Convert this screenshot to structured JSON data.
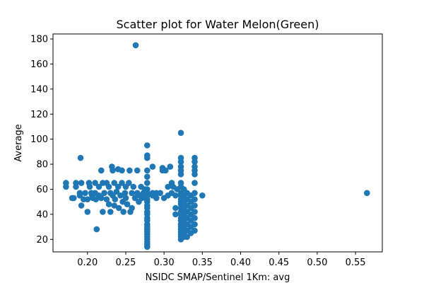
{
  "chart_data": {
    "type": "scatter",
    "title": "Scatter plot for Water Melon(Green)",
    "xlabel": "NSIDC SMAP/Sentinel 1Km: avg",
    "ylabel": "Average",
    "xlim": [
      0.155,
      0.585
    ],
    "ylim": [
      10,
      184
    ],
    "xticks": [
      0.2,
      0.25,
      0.3,
      0.35,
      0.4,
      0.45,
      0.5,
      0.55
    ],
    "xtick_labels": [
      "0.20",
      "0.25",
      "0.30",
      "0.35",
      "0.40",
      "0.45",
      "0.50",
      "0.55"
    ],
    "yticks": [
      20,
      40,
      60,
      80,
      100,
      120,
      140,
      160,
      180
    ],
    "ytick_labels": [
      "20",
      "40",
      "60",
      "80",
      "100",
      "120",
      "140",
      "160",
      "180"
    ],
    "grid": false,
    "marker_color": "#1f77b4",
    "points": [
      [
        0.172,
        65
      ],
      [
        0.172,
        62
      ],
      [
        0.18,
        53
      ],
      [
        0.182,
        53
      ],
      [
        0.185,
        62
      ],
      [
        0.185,
        65
      ],
      [
        0.19,
        57
      ],
      [
        0.19,
        55
      ],
      [
        0.191,
        85
      ],
      [
        0.192,
        65
      ],
      [
        0.192,
        47
      ],
      [
        0.195,
        52
      ],
      [
        0.197,
        57
      ],
      [
        0.2,
        52
      ],
      [
        0.2,
        42
      ],
      [
        0.202,
        65
      ],
      [
        0.203,
        62
      ],
      [
        0.205,
        57
      ],
      [
        0.206,
        55
      ],
      [
        0.207,
        53
      ],
      [
        0.21,
        65
      ],
      [
        0.21,
        57
      ],
      [
        0.211,
        52
      ],
      [
        0.212,
        28
      ],
      [
        0.215,
        55
      ],
      [
        0.215,
        62
      ],
      [
        0.218,
        75
      ],
      [
        0.218,
        53
      ],
      [
        0.22,
        65
      ],
      [
        0.22,
        42
      ],
      [
        0.222,
        57
      ],
      [
        0.225,
        65
      ],
      [
        0.225,
        52
      ],
      [
        0.228,
        62
      ],
      [
        0.228,
        48
      ],
      [
        0.23,
        57
      ],
      [
        0.23,
        42
      ],
      [
        0.232,
        78
      ],
      [
        0.233,
        75
      ],
      [
        0.233,
        55
      ],
      [
        0.235,
        65
      ],
      [
        0.235,
        47
      ],
      [
        0.236,
        52
      ],
      [
        0.238,
        58
      ],
      [
        0.24,
        76
      ],
      [
        0.24,
        62
      ],
      [
        0.241,
        45
      ],
      [
        0.243,
        55
      ],
      [
        0.245,
        65
      ],
      [
        0.245,
        75
      ],
      [
        0.246,
        50
      ],
      [
        0.247,
        42
      ],
      [
        0.249,
        57
      ],
      [
        0.25,
        62
      ],
      [
        0.25,
        53
      ],
      [
        0.252,
        48
      ],
      [
        0.254,
        65
      ],
      [
        0.255,
        75
      ],
      [
        0.256,
        42
      ],
      [
        0.258,
        57
      ],
      [
        0.258,
        45
      ],
      [
        0.26,
        62
      ],
      [
        0.262,
        53
      ],
      [
        0.263,
        175
      ],
      [
        0.265,
        75
      ],
      [
        0.265,
        57
      ],
      [
        0.267,
        50
      ],
      [
        0.268,
        55
      ],
      [
        0.27,
        62
      ],
      [
        0.271,
        53
      ],
      [
        0.273,
        57
      ],
      [
        0.275,
        55
      ],
      [
        0.275,
        60
      ],
      [
        0.276,
        53
      ],
      [
        0.278,
        95
      ],
      [
        0.278,
        87
      ],
      [
        0.278,
        85
      ],
      [
        0.278,
        75
      ],
      [
        0.278,
        70
      ],
      [
        0.278,
        65
      ],
      [
        0.278,
        60
      ],
      [
        0.278,
        57
      ],
      [
        0.278,
        55
      ],
      [
        0.278,
        52
      ],
      [
        0.278,
        50
      ],
      [
        0.278,
        47
      ],
      [
        0.278,
        45
      ],
      [
        0.278,
        42
      ],
      [
        0.278,
        40
      ],
      [
        0.278,
        37
      ],
      [
        0.278,
        35
      ],
      [
        0.278,
        32
      ],
      [
        0.278,
        30
      ],
      [
        0.278,
        28
      ],
      [
        0.278,
        26
      ],
      [
        0.278,
        24
      ],
      [
        0.278,
        22
      ],
      [
        0.278,
        20
      ],
      [
        0.278,
        18
      ],
      [
        0.278,
        16
      ],
      [
        0.278,
        14
      ],
      [
        0.285,
        78
      ],
      [
        0.285,
        57
      ],
      [
        0.285,
        55
      ],
      [
        0.29,
        57
      ],
      [
        0.29,
        53
      ],
      [
        0.295,
        57
      ],
      [
        0.298,
        77
      ],
      [
        0.298,
        75
      ],
      [
        0.3,
        53
      ],
      [
        0.302,
        75
      ],
      [
        0.305,
        62
      ],
      [
        0.305,
        55
      ],
      [
        0.308,
        78
      ],
      [
        0.31,
        65
      ],
      [
        0.31,
        57
      ],
      [
        0.312,
        62
      ],
      [
        0.315,
        55
      ],
      [
        0.315,
        45
      ],
      [
        0.315,
        40
      ],
      [
        0.317,
        60
      ],
      [
        0.322,
        105
      ],
      [
        0.322,
        85
      ],
      [
        0.322,
        82
      ],
      [
        0.322,
        78
      ],
      [
        0.322,
        75
      ],
      [
        0.322,
        72
      ],
      [
        0.322,
        65
      ],
      [
        0.322,
        62
      ],
      [
        0.322,
        57
      ],
      [
        0.322,
        55
      ],
      [
        0.322,
        52
      ],
      [
        0.322,
        50
      ],
      [
        0.322,
        48
      ],
      [
        0.322,
        45
      ],
      [
        0.322,
        42
      ],
      [
        0.322,
        40
      ],
      [
        0.322,
        37
      ],
      [
        0.322,
        35
      ],
      [
        0.322,
        32
      ],
      [
        0.322,
        30
      ],
      [
        0.322,
        28
      ],
      [
        0.322,
        26
      ],
      [
        0.322,
        24
      ],
      [
        0.322,
        22
      ],
      [
        0.322,
        20
      ],
      [
        0.326,
        60
      ],
      [
        0.326,
        55
      ],
      [
        0.326,
        50
      ],
      [
        0.326,
        45
      ],
      [
        0.326,
        40
      ],
      [
        0.326,
        35
      ],
      [
        0.326,
        30
      ],
      [
        0.326,
        25
      ],
      [
        0.326,
        22
      ],
      [
        0.33,
        57
      ],
      [
        0.33,
        52
      ],
      [
        0.33,
        47
      ],
      [
        0.33,
        42
      ],
      [
        0.33,
        37
      ],
      [
        0.33,
        32
      ],
      [
        0.33,
        27
      ],
      [
        0.33,
        22
      ],
      [
        0.335,
        55
      ],
      [
        0.335,
        50
      ],
      [
        0.335,
        45
      ],
      [
        0.335,
        40
      ],
      [
        0.335,
        35
      ],
      [
        0.335,
        30
      ],
      [
        0.335,
        25
      ],
      [
        0.34,
        85
      ],
      [
        0.34,
        82
      ],
      [
        0.34,
        78
      ],
      [
        0.34,
        75
      ],
      [
        0.34,
        72
      ],
      [
        0.34,
        65
      ],
      [
        0.34,
        57
      ],
      [
        0.34,
        52
      ],
      [
        0.34,
        47
      ],
      [
        0.34,
        42
      ],
      [
        0.34,
        37
      ],
      [
        0.34,
        32
      ],
      [
        0.34,
        27
      ],
      [
        0.35,
        55
      ],
      [
        0.565,
        57
      ]
    ]
  }
}
